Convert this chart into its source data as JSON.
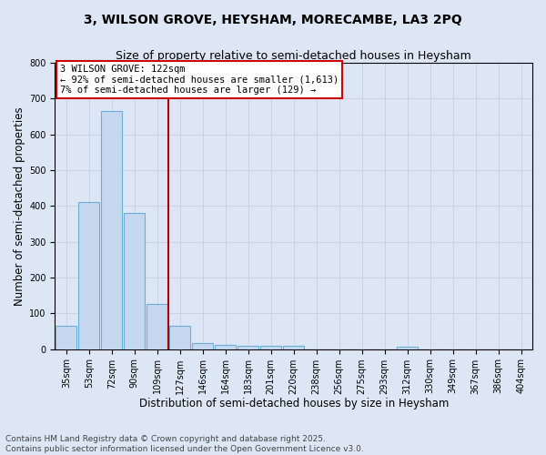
{
  "title_line1": "3, WILSON GROVE, HEYSHAM, MORECAMBE, LA3 2PQ",
  "title_line2": "Size of property relative to semi-detached houses in Heysham",
  "xlabel": "Distribution of semi-detached houses by size in Heysham",
  "ylabel": "Number of semi-detached properties",
  "bin_labels": [
    "35sqm",
    "53sqm",
    "72sqm",
    "90sqm",
    "109sqm",
    "127sqm",
    "146sqm",
    "164sqm",
    "183sqm",
    "201sqm",
    "220sqm",
    "238sqm",
    "256sqm",
    "275sqm",
    "293sqm",
    "312sqm",
    "330sqm",
    "349sqm",
    "367sqm",
    "386sqm",
    "404sqm"
  ],
  "bar_values": [
    65,
    410,
    665,
    380,
    125,
    65,
    18,
    13,
    8,
    10,
    8,
    0,
    0,
    0,
    0,
    7,
    0,
    0,
    0,
    0,
    0
  ],
  "bar_color": "#c5d8f0",
  "bar_edgecolor": "#6baed6",
  "vline_index": 4.5,
  "annotation_text": "3 WILSON GROVE: 122sqm\n← 92% of semi-detached houses are smaller (1,613)\n7% of semi-detached houses are larger (129) →",
  "annotation_box_facecolor": "#ffffff",
  "annotation_box_edgecolor": "#cc0000",
  "ylim": [
    0,
    800
  ],
  "yticks": [
    0,
    100,
    200,
    300,
    400,
    500,
    600,
    700,
    800
  ],
  "grid_color": "#c8d0e0",
  "background_color": "#dde6f5",
  "vline_color": "#aa0000",
  "footer_line1": "Contains HM Land Registry data © Crown copyright and database right 2025.",
  "footer_line2": "Contains public sector information licensed under the Open Government Licence v3.0.",
  "title_fontsize": 10,
  "subtitle_fontsize": 9,
  "axis_label_fontsize": 8.5,
  "tick_fontsize": 7,
  "annotation_fontsize": 7.5,
  "footer_fontsize": 6.5
}
